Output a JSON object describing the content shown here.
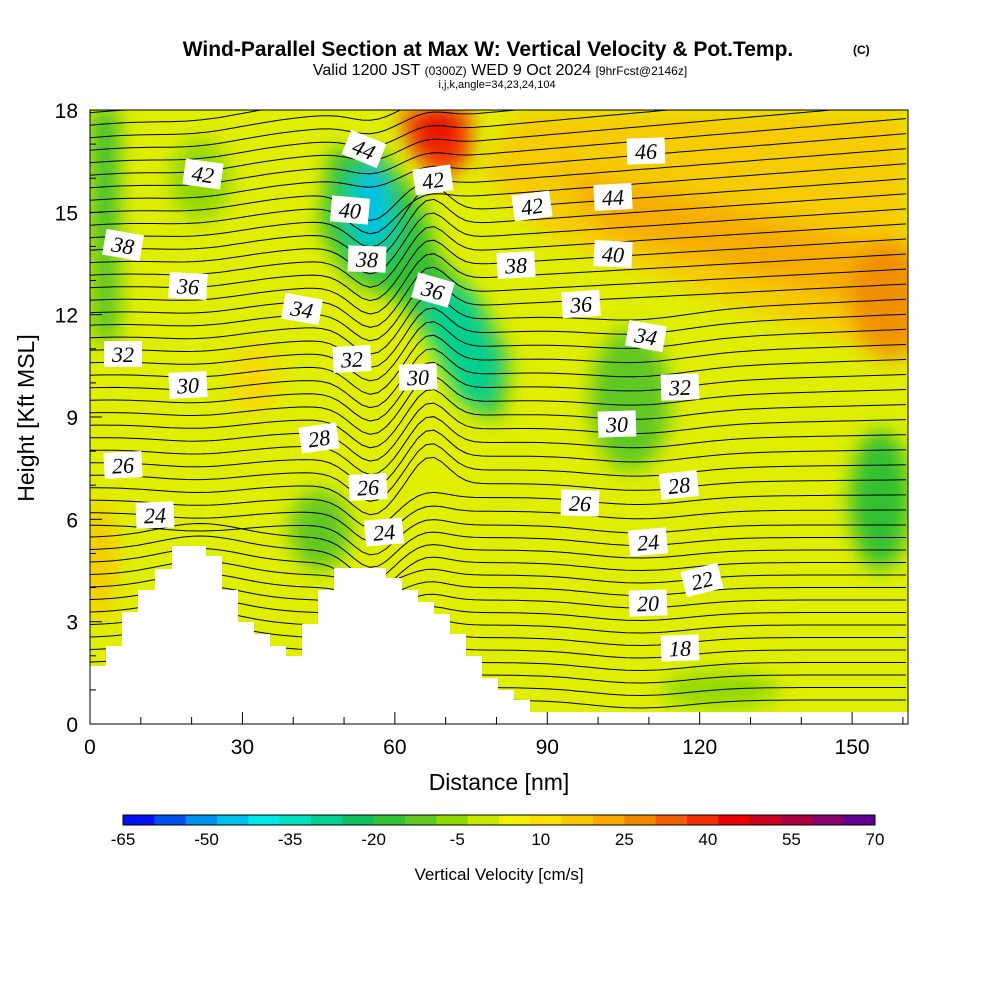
{
  "chart_data": {
    "type": "heatmap",
    "title": "Wind-Parallel Section at Max W: Vertical Velocity & Pot.Temp.",
    "title_mark": "(C)",
    "subtitle": {
      "prefix": "Valid 1200 JST",
      "utc": "(0300Z)",
      "date": "WED 9 Oct 2024",
      "forecast": "[9hrFcst@2146z]"
    },
    "section_info": "i,j,k,angle=34,23,24,104",
    "xlabel": "Distance [nm]",
    "ylabel": "Height [Kft MSL]",
    "xlim": [
      0,
      161
    ],
    "ylim": [
      0,
      18
    ],
    "x_ticks": [
      0,
      30,
      60,
      90,
      120,
      150
    ],
    "y_ticks": [
      0,
      3,
      6,
      9,
      12,
      15,
      18
    ],
    "colorbar": {
      "label": "Vertical Velocity [cm/s]",
      "ticks": [
        -65,
        -50,
        -35,
        -20,
        -5,
        10,
        25,
        40,
        55,
        70
      ],
      "colors": [
        "#0010f0",
        "#0050f0",
        "#0090f0",
        "#00c0f0",
        "#00e8e8",
        "#00e0c0",
        "#00d090",
        "#10c060",
        "#30c030",
        "#60c820",
        "#90d800",
        "#c8e800",
        "#f0f000",
        "#f8e000",
        "#f8c800",
        "#f8a800",
        "#f08800",
        "#f06000",
        "#f03000",
        "#e80000",
        "#c80020",
        "#a80040",
        "#880070",
        "#600090"
      ]
    },
    "background_color": "#e0ee00",
    "contour_labels": [
      "18",
      "20",
      "22",
      "24",
      "24",
      "24",
      "26",
      "26",
      "26",
      "28",
      "28",
      "30",
      "30",
      "30",
      "32",
      "32",
      "32",
      "34",
      "34",
      "36",
      "36",
      "36",
      "38",
      "38",
      "38",
      "40",
      "40",
      "42",
      "42",
      "42",
      "44",
      "44",
      "46"
    ]
  }
}
